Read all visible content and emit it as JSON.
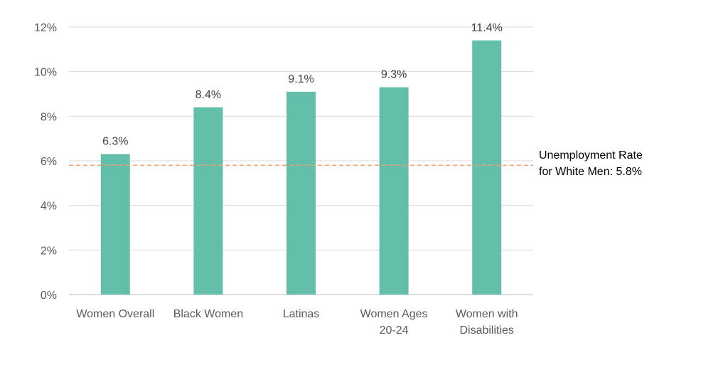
{
  "chart_data": {
    "type": "bar",
    "categories": [
      [
        "Women Overall"
      ],
      [
        "Black Women"
      ],
      [
        "Latinas"
      ],
      [
        "Women Ages",
        "20-24"
      ],
      [
        "Women with",
        "Disabilities"
      ]
    ],
    "values": [
      6.3,
      8.4,
      9.1,
      9.3,
      11.4
    ],
    "value_labels": [
      "6.3%",
      "8.4%",
      "9.1%",
      "9.3%",
      "11.4%"
    ],
    "ylim": [
      0,
      12
    ],
    "yticks": [
      {
        "value": 0,
        "label": "0%"
      },
      {
        "value": 2,
        "label": "2%"
      },
      {
        "value": 4,
        "label": "4%"
      },
      {
        "value": 6,
        "label": "6%"
      },
      {
        "value": 8,
        "label": "8%"
      },
      {
        "value": 10,
        "label": "10%"
      },
      {
        "value": 12,
        "label": "12%"
      }
    ],
    "grid": true,
    "bar_color": "#63bfaa",
    "reference_line": {
      "value": 5.8,
      "color": "#f0a070",
      "style": "dashed",
      "label": [
        "Unemployment Rate",
        "for White Men: 5.8%"
      ]
    }
  }
}
